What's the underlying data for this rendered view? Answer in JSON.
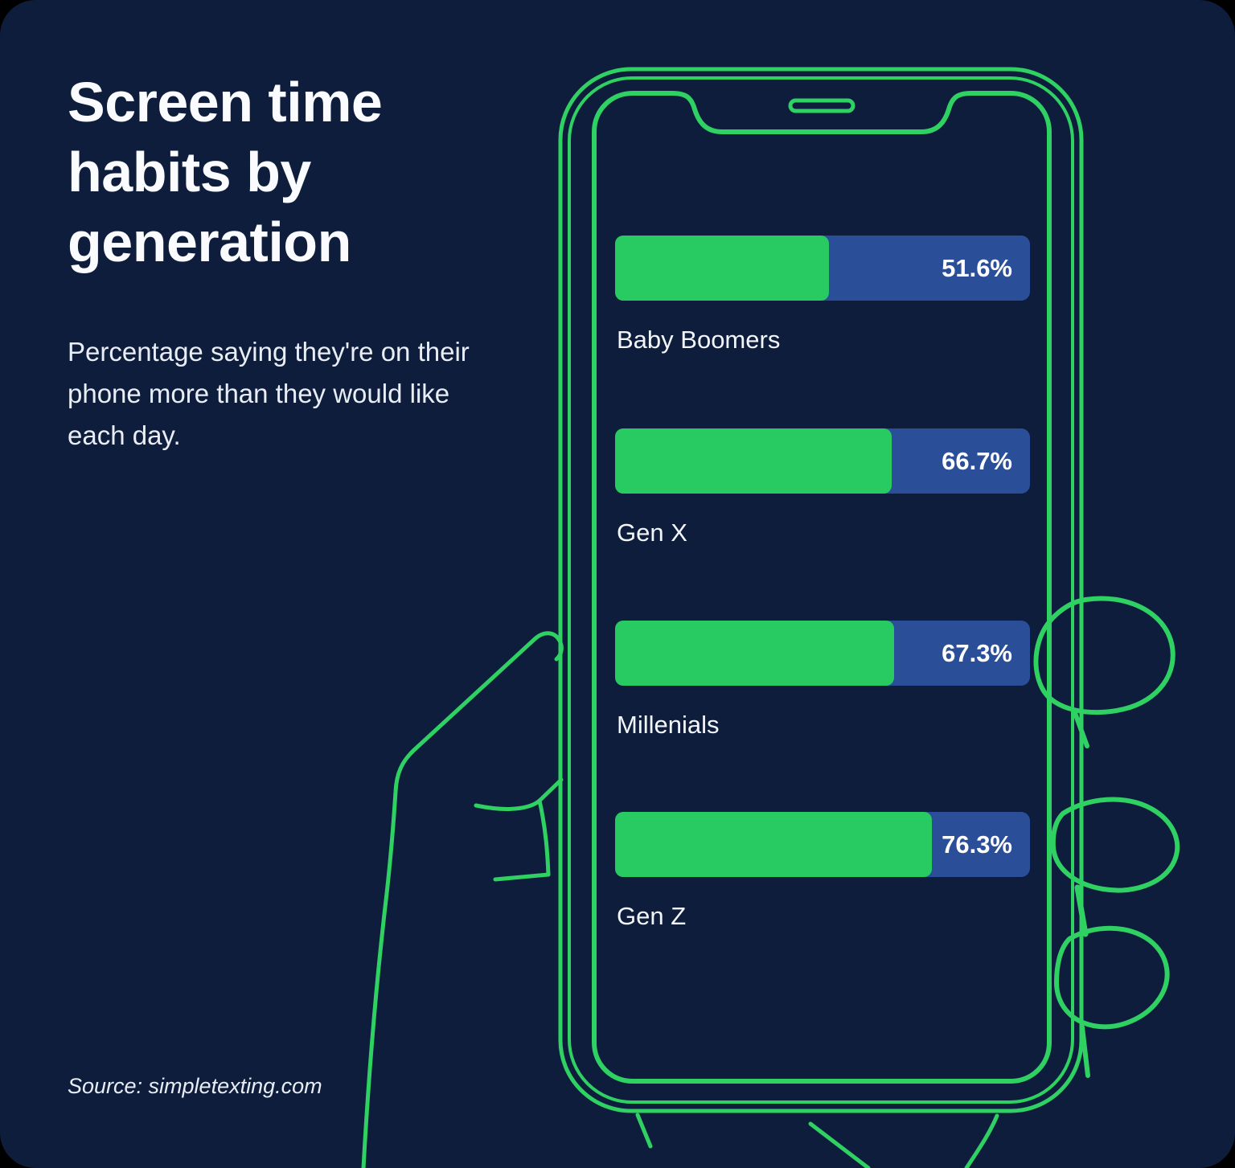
{
  "header": {
    "title": "Screen time habits by generation",
    "subtitle": "Percentage saying they're on their phone more than they would like each day.",
    "source": "Source: simpletexting.com"
  },
  "chart_data": {
    "type": "bar",
    "orientation": "horizontal",
    "title": "Screen time habits by generation",
    "subtitle": "Percentage saying they're on their phone more than they would like each day.",
    "categories": [
      "Baby Boomers",
      "Gen X",
      "Millenials",
      "Gen Z"
    ],
    "values": [
      51.6,
      66.7,
      67.3,
      76.3
    ],
    "value_labels": [
      "51.6%",
      "66.7%",
      "67.3%",
      "76.3%"
    ],
    "unit": "%",
    "xlim": [
      0,
      100
    ],
    "grid": false,
    "legend": false,
    "source": "simpletexting.com"
  },
  "bars": [
    {
      "label": "Baby Boomers",
      "value": 51.6,
      "pct_label": "51.6%"
    },
    {
      "label": "Gen X",
      "value": 66.7,
      "pct_label": "66.7%"
    },
    {
      "label": "Millenials",
      "value": 67.3,
      "pct_label": "67.3%"
    },
    {
      "label": "Gen Z",
      "value": 76.3,
      "pct_label": "76.3%"
    }
  ],
  "illustration": {
    "description": "green outline of a hand holding a smartphone, bars shown on phone screen",
    "elements": [
      "phone-outline",
      "notch",
      "speaker-slot",
      "thumb",
      "finger-tips"
    ]
  },
  "colors": {
    "navy": "#0E1D3C",
    "line-green": "#2ED162",
    "bar-green": "#27CB61",
    "bar-blue": "#2B4E99",
    "title-white": "#FAFBFE",
    "body-white": "#E9EDF5"
  }
}
